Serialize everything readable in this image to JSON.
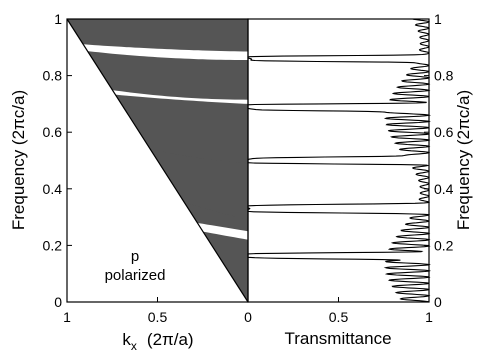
{
  "chart_data": [
    {
      "type": "area",
      "panel": "band-diagram",
      "xlabel_main": "k",
      "xlabel_sub": "x",
      "xlabel_units": "(2π/a)",
      "ylabel": "Frequency  (2πc/a)",
      "xlim": [
        1,
        0
      ],
      "ylim": [
        0,
        1
      ],
      "x_ticks": [
        "1",
        "0.5",
        "0"
      ],
      "y_ticks": [
        "0",
        "0.2",
        "0.4",
        "0.6",
        "0.8",
        "1"
      ],
      "annotation": [
        "p",
        "polarized"
      ],
      "light_line": {
        "x": [
          1,
          0
        ],
        "y": [
          1,
          0
        ]
      },
      "band_fill_color": "#555555",
      "bands": [
        {
          "upper": [
            [
              1,
              0.335
            ],
            [
              0,
              0.22
            ]
          ],
          "lower": [
            [
              1,
              0.0
            ],
            [
              0,
              0.0
            ]
          ]
        },
        {
          "upper": [
            [
              1,
              0.445
            ],
            [
              0.5,
              0.385
            ],
            [
              0,
              0.35
            ]
          ],
          "lower": [
            [
              1,
              0.355
            ],
            [
              0,
              0.25
            ]
          ]
        },
        {
          "upper": [
            [
              1,
              0.605
            ],
            [
              0.5,
              0.545
            ],
            [
              0,
              0.52
            ]
          ],
          "lower": [
            [
              1,
              0.485
            ],
            [
              0.5,
              0.38
            ],
            [
              0,
              0.29
            ]
          ]
        },
        {
          "upper": [
            [
              1,
              0.75
            ],
            [
              0.5,
              0.72
            ],
            [
              0,
              0.7
            ]
          ],
          "lower": [
            [
              1,
              0.625
            ],
            [
              0.5,
              0.535
            ],
            [
              0,
              0.49
            ]
          ]
        },
        {
          "upper": [
            [
              1,
              0.895
            ],
            [
              0.5,
              0.865
            ],
            [
              0,
              0.855
            ]
          ],
          "lower": [
            [
              1,
              0.775
            ],
            [
              0.5,
              0.73
            ],
            [
              0,
              0.715
            ]
          ]
        },
        {
          "upper": [
            [
              1,
              1.0
            ],
            [
              0,
              1.0
            ]
          ],
          "lower": [
            [
              1,
              0.915
            ],
            [
              0.5,
              0.895
            ],
            [
              0,
              0.885
            ]
          ]
        }
      ]
    },
    {
      "type": "line",
      "panel": "transmittance",
      "xlabel": "Transmittance",
      "ylabel": "Frequency  (2πc/a)",
      "xlim": [
        0,
        1
      ],
      "ylim": [
        0,
        1
      ],
      "x_ticks": [
        "0",
        "0.5",
        "1"
      ],
      "y_ticks": [
        "0",
        "0.2",
        "0.4",
        "0.6",
        "0.8",
        "1"
      ],
      "gaps": [
        {
          "f": 0.163,
          "w": 0.012,
          "depth": 0.95
        },
        {
          "f": 0.33,
          "w": 0.016,
          "depth": 0.99
        },
        {
          "f": 0.5,
          "w": 0.013,
          "depth": 0.99
        },
        {
          "f": 0.688,
          "w": 0.013,
          "depth": 0.99
        },
        {
          "f": 0.86,
          "w": 0.011,
          "depth": 0.98
        }
      ],
      "ripple_amplitude": 0.24,
      "ripple_period": 0.022
    }
  ]
}
